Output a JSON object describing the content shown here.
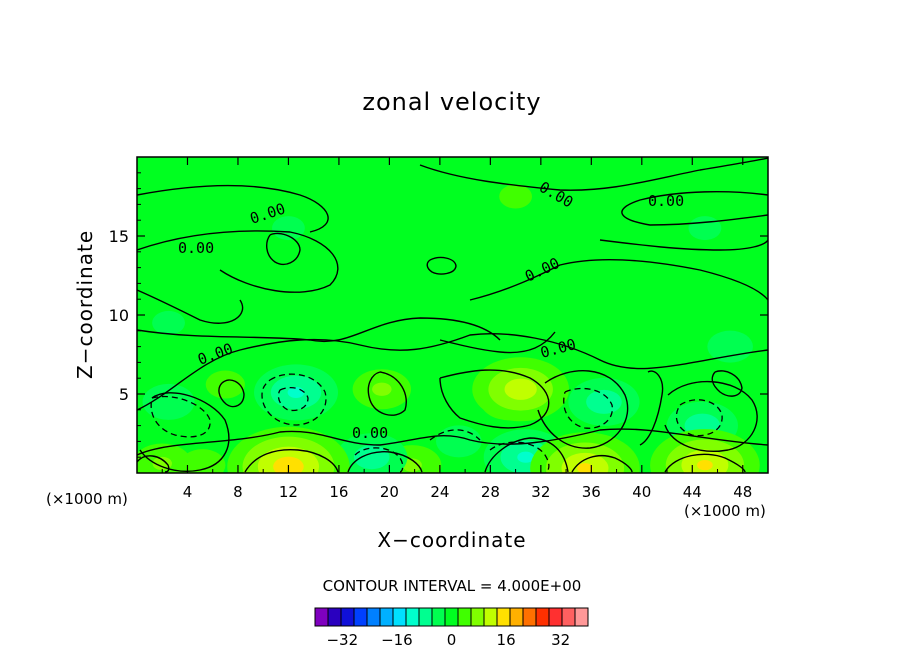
{
  "chart_data": {
    "type": "heatmap",
    "title": "zonal velocity",
    "xlabel": "X−coordinate",
    "ylabel": "Z−coordinate",
    "x_unit": "(×1000 m)",
    "z_unit": "(×1000 m)",
    "xlim": [
      0,
      50
    ],
    "ylim": [
      0,
      20
    ],
    "x_ticks": [
      4,
      8,
      12,
      16,
      20,
      24,
      28,
      32,
      36,
      40,
      44,
      48
    ],
    "y_ticks": [
      5,
      10,
      15
    ],
    "contour_interval_text": "CONTOUR INTERVAL = 4.000E+00",
    "contour_labels": [
      "0.00",
      "0.00",
      "0.00",
      "0.00",
      "0.00",
      "0.00",
      "0.00",
      "0.00"
    ],
    "colorbar": {
      "tick_labels": [
        "−32",
        "−16",
        "0",
        "16",
        "32"
      ],
      "tick_values": [
        -32,
        -16,
        0,
        16,
        32
      ],
      "range": [
        -40,
        40
      ],
      "colors": [
        "#7f00bf",
        "#2a00bf",
        "#1010d8",
        "#0040ff",
        "#0080ff",
        "#00b0ff",
        "#00e0ff",
        "#00ffcc",
        "#00ff90",
        "#00ff50",
        "#00ff20",
        "#40ff00",
        "#80ff00",
        "#c0ff00",
        "#ffe000",
        "#ffb000",
        "#ff7000",
        "#ff3000",
        "#ff3030",
        "#ff6060",
        "#ff9898"
      ]
    },
    "features": [
      {
        "x": 12,
        "z": 0.4,
        "value": 16
      },
      {
        "x": 35.5,
        "z": 0.3,
        "value": 14
      },
      {
        "x": 45,
        "z": 0.5,
        "value": 14
      },
      {
        "x": 2,
        "z": 0.6,
        "value": 6
      },
      {
        "x": 21.8,
        "z": 0.5,
        "value": 6
      },
      {
        "x": 5.2,
        "z": 0.5,
        "value": 4
      },
      {
        "x": 30.4,
        "z": 5.3,
        "value": 12
      },
      {
        "x": 29.5,
        "z": 4.6,
        "value": 6
      },
      {
        "x": 19.4,
        "z": 5.3,
        "value": 6
      },
      {
        "x": 7,
        "z": 5.6,
        "value": 3
      },
      {
        "x": 12.6,
        "z": 5.1,
        "value": -10
      },
      {
        "x": 30.8,
        "z": 1.0,
        "value": -10
      },
      {
        "x": 18.6,
        "z": 1.0,
        "value": -8
      },
      {
        "x": 37,
        "z": 4.5,
        "value": -8
      },
      {
        "x": 44.8,
        "z": 3.0,
        "value": -8
      },
      {
        "x": 2.5,
        "z": 4.5,
        "value": -5
      },
      {
        "x": 25.5,
        "z": 2.0,
        "value": -4
      },
      {
        "x": 47,
        "z": 8.0,
        "value": -4
      },
      {
        "x": 2.5,
        "z": 9.5,
        "value": -2
      },
      {
        "x": 12,
        "z": 15.5,
        "value": -2
      },
      {
        "x": 45,
        "z": 15.5,
        "value": -2
      },
      {
        "x": 30,
        "z": 17.5,
        "value": 2
      }
    ]
  }
}
